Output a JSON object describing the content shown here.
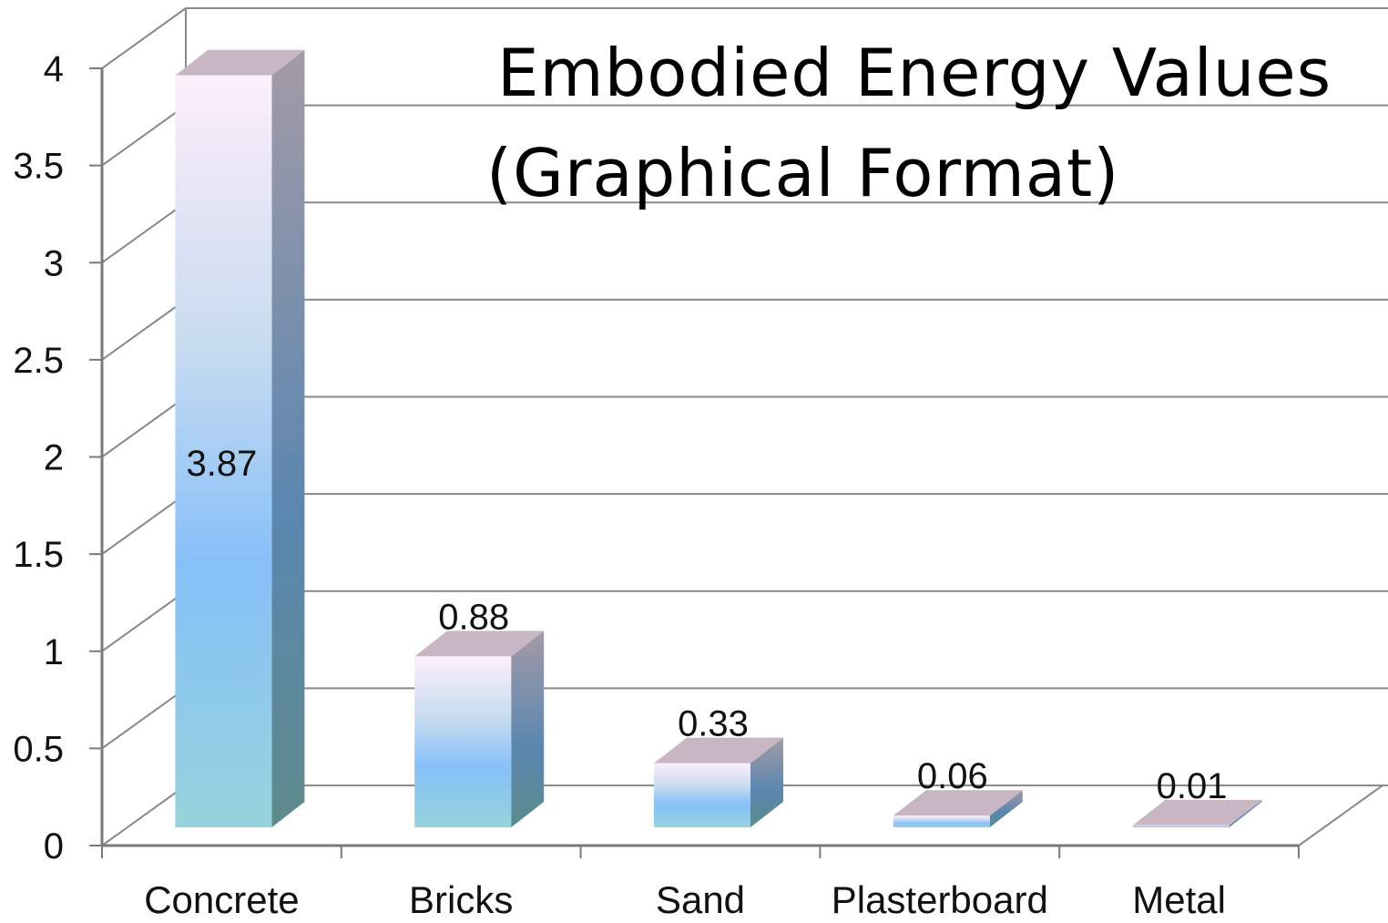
{
  "chart_data": {
    "type": "bar",
    "style": "3d-column",
    "title_lines": [
      "Embodied Energy Values",
      "(Graphical Format)"
    ],
    "xlabel": "",
    "ylabel": "",
    "categories": [
      "Concrete",
      "Bricks",
      "Sand",
      "Plasterboard",
      "Metal"
    ],
    "values": [
      3.87,
      0.88,
      0.33,
      0.06,
      0.01
    ],
    "data_labels": [
      "3.87",
      "0.88",
      "0.33",
      "0.06",
      "0.01"
    ],
    "ylim": [
      0,
      4
    ],
    "yticks": [
      "0",
      "0.5",
      "1",
      "1.5",
      "2",
      "2.5",
      "3",
      "3.5",
      "4"
    ],
    "grid": true,
    "legend": "none",
    "colors": {
      "bar_gradient": [
        "#fdeefb",
        "#c9dcf0",
        "#86c0f8",
        "#96d3dc"
      ],
      "bar_side": [
        "#a39ba7",
        "#5a86b0",
        "#5e8a8c"
      ],
      "bar_top": "#c8b6c4",
      "grid": "#8a8a8a",
      "axis": "#7a7a7a"
    }
  }
}
